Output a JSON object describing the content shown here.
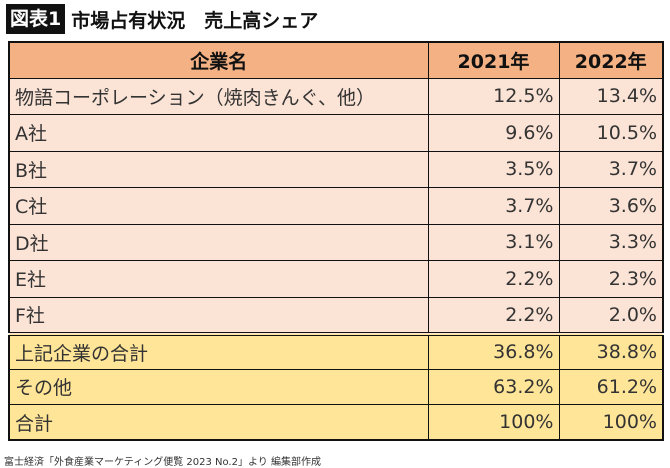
{
  "title": {
    "badge": "図表1",
    "text": "市場占有状況　売上高シェア"
  },
  "table": {
    "headers": [
      "企業名",
      "2021年",
      "2022年"
    ],
    "rows": [
      [
        "物語コーポレーション（焼肉きんぐ、他）",
        "12.5%",
        "13.4%"
      ],
      [
        "A社",
        "9.6%",
        "10.5%"
      ],
      [
        "B社",
        "3.5%",
        "3.7%"
      ],
      [
        "C社",
        "3.7%",
        "3.6%"
      ],
      [
        "D社",
        "3.1%",
        "3.3%"
      ],
      [
        "E社",
        "2.2%",
        "2.3%"
      ],
      [
        "F社",
        "2.2%",
        "2.0%"
      ]
    ],
    "summary": [
      [
        "上記企業の合計",
        "36.8%",
        "38.8%"
      ],
      [
        "その他",
        "63.2%",
        "61.2%"
      ],
      [
        "合計",
        "100%",
        "100%"
      ]
    ]
  },
  "source": "富士経済「外食産業マーケティング便覧 2023 No.2」より 編集部作成",
  "colors": {
    "header": "#f4b183",
    "company_rows": "#fbe3d5",
    "summary_rows": "#ffe597"
  }
}
